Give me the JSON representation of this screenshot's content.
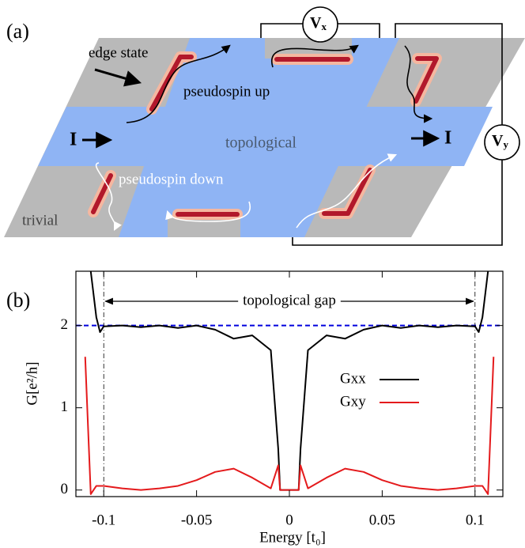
{
  "panel_a": {
    "label": "(a)",
    "edge_state": "edge state",
    "pseudospin_up": "pseudospin up",
    "pseudospin_down": "pseudospin down",
    "topological": "topological",
    "trivial": "trivial",
    "current_left": "I",
    "current_right": "I",
    "voltmeter_x": {
      "symbol": "V",
      "subscript": "x"
    },
    "voltmeter_y": {
      "symbol": "V",
      "subscript": "y"
    }
  },
  "chart_data": {
    "type": "line",
    "panel_label": "(b)",
    "x_label": "Energy [t₀]",
    "y_label": "G[e²/h]",
    "x": [
      -0.11,
      -0.107,
      -0.104,
      -0.102,
      -0.1,
      -0.09,
      -0.08,
      -0.07,
      -0.06,
      -0.05,
      -0.04,
      -0.03,
      -0.02,
      -0.01,
      -0.006,
      -0.005,
      -0.004,
      0,
      0.004,
      0.005,
      0.006,
      0.01,
      0.02,
      0.03,
      0.04,
      0.05,
      0.06,
      0.07,
      0.08,
      0.09,
      0.1,
      0.102,
      0.104,
      0.107,
      0.11
    ],
    "series": [
      {
        "name": "Gxx",
        "color": "#000000",
        "values": [
          null,
          2.66,
          2.1,
          1.92,
          1.99,
          2.0,
          1.98,
          2.0,
          1.97,
          2.0,
          1.95,
          1.84,
          1.88,
          1.7,
          0.5,
          0,
          0,
          0,
          0,
          0,
          0.5,
          1.7,
          1.88,
          1.84,
          1.95,
          2.0,
          1.97,
          2.0,
          1.98,
          2.0,
          1.99,
          1.92,
          2.1,
          2.66,
          null
        ]
      },
      {
        "name": "Gxy",
        "color": "#e41a1c",
        "values": [
          1.62,
          -0.05,
          0.05,
          0.05,
          0.05,
          0.02,
          0.0,
          0.02,
          0.05,
          0.12,
          0.22,
          0.26,
          0.15,
          0.02,
          0.3,
          0,
          0,
          0,
          0,
          0,
          0.3,
          0.02,
          0.15,
          0.26,
          0.22,
          0.12,
          0.05,
          0.02,
          0.0,
          0.02,
          0.05,
          0.05,
          0.05,
          -0.05,
          1.62
        ]
      }
    ],
    "xlim": [
      -0.115,
      0.115
    ],
    "ylim": [
      -0.08,
      2.66
    ],
    "xticks": [
      -0.1,
      -0.05,
      0,
      0.05,
      0.1
    ],
    "yticks": [
      0,
      1,
      2
    ],
    "reference_line": {
      "value": 2,
      "color": "#0000dd"
    },
    "gap": {
      "label": "topological gap",
      "bounds": [
        -0.1,
        0.1
      ]
    },
    "legend_position": "right"
  }
}
